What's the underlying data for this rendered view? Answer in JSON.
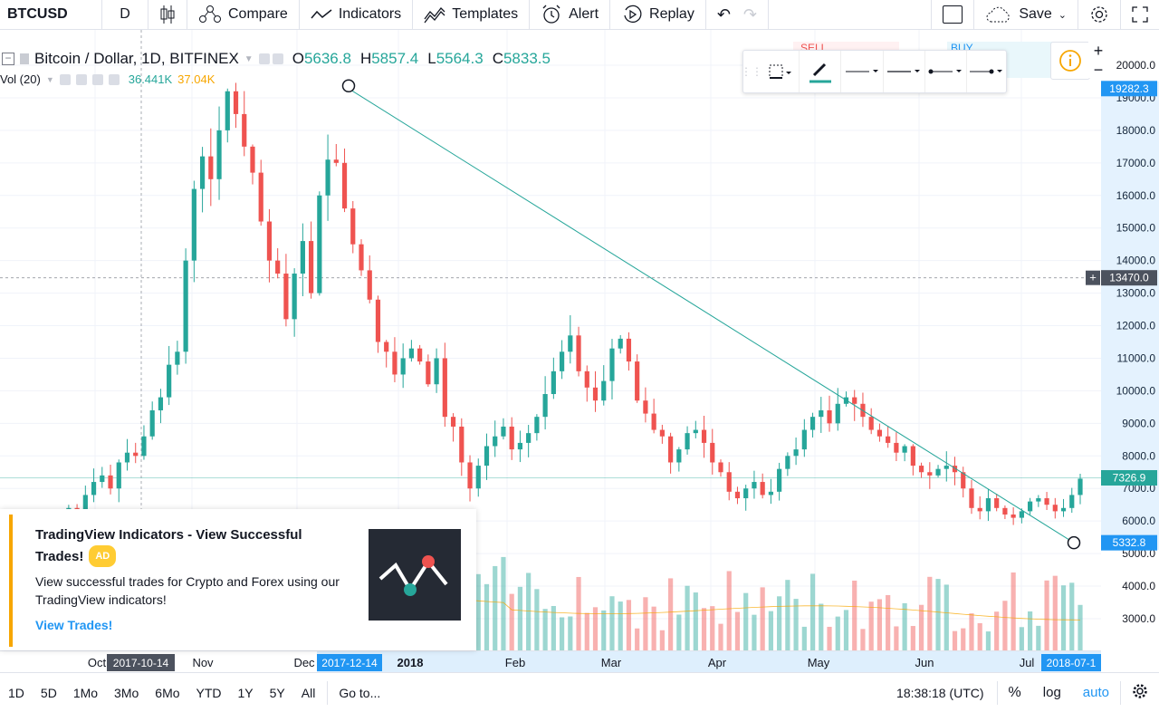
{
  "toolbar": {
    "symbol": "BTCUSD",
    "interval": "D",
    "compare_label": "Compare",
    "indicators_label": "Indicators",
    "templates_label": "Templates",
    "alert_label": "Alert",
    "replay_label": "Replay",
    "save_label": "Save"
  },
  "legend": {
    "title": "Bitcoin / Dollar, 1D, BITFINEX",
    "open_label": "O",
    "open": "5636.8",
    "high_label": "H",
    "high": "5857.4",
    "low_label": "L",
    "low": "5564.3",
    "close_label": "C",
    "close": "5833.5"
  },
  "volume": {
    "label": "Vol (20)",
    "value": "36.441K",
    "ma": "37.04K"
  },
  "trade_panel": {
    "sell_label": "SELL",
    "buy_label": "BUY"
  },
  "price_axis": {
    "ticks": [
      "20000.0",
      "19000.0",
      "18000.0",
      "17000.0",
      "16000.0",
      "15000.0",
      "14000.0",
      "13000.0",
      "12000.0",
      "11000.0",
      "10000.0",
      "9000.0",
      "8000.0",
      "7000.0",
      "6000.0",
      "5000.0",
      "4000.0",
      "3000.0"
    ],
    "tag_top": "19282.3",
    "tag_cross": "13470.0",
    "tag_last": "7326.9",
    "tag_bottom": "5332.8"
  },
  "time_axis": {
    "labels": [
      "Oct",
      "Nov",
      "Dec",
      "2018",
      "Feb",
      "Mar",
      "Apr",
      "May",
      "Jun",
      "Jul"
    ],
    "tag_left": "2017-10-14",
    "tag_mid": "2017-12-14",
    "tag_right": "2018-07-1"
  },
  "ad": {
    "title": "TradingView Indicators - View Successful Trades!",
    "badge": "AD",
    "body": "View successful trades for Crypto and Forex using our TradingView indicators!",
    "link": "View Trades!"
  },
  "bottom_bar": {
    "ranges": [
      "1D",
      "5D",
      "1Mo",
      "3Mo",
      "6Mo",
      "YTD",
      "1Y",
      "5Y",
      "All"
    ],
    "goto": "Go to...",
    "time": "18:38:18 (UTC)",
    "percent": "%",
    "log": "log",
    "auto": "auto"
  },
  "colors": {
    "up": "#26a69a",
    "down": "#ef5350",
    "trendline": "#26a69a",
    "accent": "#2196f3"
  },
  "chart_data": {
    "type": "candlestick",
    "title": "Bitcoin / Dollar, 1D, BITFINEX",
    "ylim": [
      2200,
      20700
    ],
    "trendline": {
      "start": {
        "date": "2017-12-14",
        "price": 19282.3
      },
      "end": {
        "date": "2018-07-13",
        "price": 5332.8
      }
    },
    "closes": [
      4800,
      4600,
      5000,
      5400,
      5700,
      6000,
      5800,
      6100,
      6400,
      6300,
      6800,
      7200,
      7400,
      7000,
      7800,
      8100,
      8000,
      8600,
      9400,
      9800,
      10800,
      11200,
      14000,
      16200,
      17200,
      16500,
      18000,
      19200,
      18500,
      17500,
      16700,
      15200,
      14000,
      13600,
      12200,
      13600,
      14600,
      13000,
      16000,
      17100,
      17000,
      15600,
      14500,
      13700,
      12800,
      11500,
      11200,
      10500,
      11000,
      11300,
      10900,
      10200,
      11000,
      9200,
      8900,
      7800,
      7000,
      7700,
      8300,
      8600,
      8900,
      8200,
      8400,
      8700,
      9200,
      9900,
      10600,
      11200,
      11700,
      10600,
      10100,
      9700,
      10300,
      11300,
      11600,
      10900,
      9700,
      9300,
      8800,
      8600,
      7800,
      8200,
      8700,
      8800,
      8400,
      7800,
      7500,
      6900,
      6700,
      7000,
      7200,
      6800,
      6900,
      7600,
      8000,
      8200,
      8800,
      9200,
      9400,
      9000,
      9600,
      9800,
      9600,
      9200,
      8800,
      8600,
      8400,
      8100,
      8300,
      7700,
      7500,
      7400,
      7600,
      7700,
      7500,
      7000,
      6400,
      6300,
      6700,
      6400,
      6200,
      6100,
      6300,
      6600,
      6700,
      6500,
      6300,
      6400,
      6800,
      7300
    ]
  }
}
